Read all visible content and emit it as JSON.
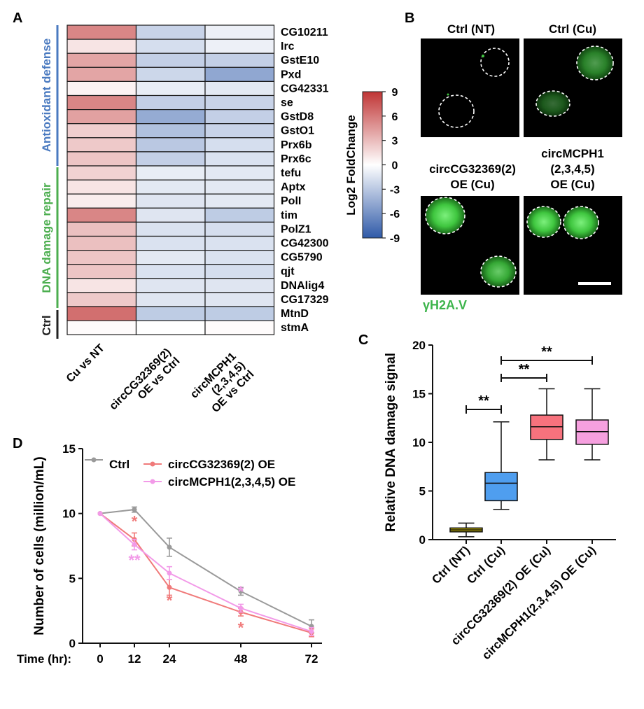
{
  "colors": {
    "red": "#c03535",
    "blue": "#3a64ae",
    "green_text": "#3cb44b",
    "gene_group_bar_antioxidant": "#4a7ac0",
    "gene_group_bar_dna": "#4cae4f",
    "ctrl_line": "#9a9a9a",
    "oe1_line": "#f07a7a",
    "oe2_line": "#f29ae8",
    "box_nt": "#b5a600",
    "box_cu": "#4f9eef",
    "box_oe1": "#f7727d",
    "box_oe2": "#f6a0df"
  },
  "panels": {
    "a": "A",
    "b": "B",
    "c": "C",
    "d": "D"
  },
  "heatmap": {
    "groups": [
      "Antioxidant defense",
      "DNA damage repair",
      "Ctrl"
    ],
    "genes": [
      "CG10211",
      "Irc",
      "GstE10",
      "Pxd",
      "CG42331",
      "se",
      "GstD8",
      "GstO1",
      "Prx6b",
      "Prx6c",
      "tefu",
      "Aptx",
      "PolI",
      "tim",
      "PolZ1",
      "CG42300",
      "CG5790",
      "qjt",
      "DNAlig4",
      "CG17329",
      "MtnD",
      "stmA"
    ],
    "columns": [
      "Cu vs NT",
      "circCG32369(2)\nOE vs Ctrl",
      "circMCPH1\n(2,3,4,5)\nOE vs Ctrl"
    ],
    "values": [
      [
        5.4,
        -2.4,
        -0.8
      ],
      [
        1.2,
        -1.8,
        -0.8
      ],
      [
        4.0,
        -2.6,
        -2.6
      ],
      [
        4.0,
        -2.2,
        -4.8
      ],
      [
        0.6,
        -1.0,
        -1.2
      ],
      [
        5.4,
        -2.6,
        -2.4
      ],
      [
        4.2,
        -4.6,
        -2.6
      ],
      [
        2.2,
        -3.4,
        -2.4
      ],
      [
        2.4,
        -3.0,
        -1.8
      ],
      [
        2.6,
        -2.6,
        -1.6
      ],
      [
        2.0,
        -1.0,
        -1.2
      ],
      [
        1.2,
        -1.2,
        -1.2
      ],
      [
        0.8,
        -1.4,
        -1.2
      ],
      [
        5.4,
        -1.4,
        -2.8
      ],
      [
        2.8,
        -1.6,
        -1.8
      ],
      [
        2.8,
        -1.6,
        -1.6
      ],
      [
        2.6,
        -1.2,
        -1.6
      ],
      [
        2.6,
        -1.6,
        -1.8
      ],
      [
        1.2,
        -1.4,
        -1.4
      ],
      [
        2.4,
        -1.4,
        -1.4
      ],
      [
        6.4,
        -2.8,
        -2.8
      ],
      [
        0.2,
        0.0,
        0.2
      ]
    ],
    "colorbar": {
      "label": "Log2 FoldChange",
      "ticks": [
        "9",
        "6",
        "3",
        "0",
        "-3",
        "-6",
        "-9"
      ],
      "min": -9,
      "max": 9
    }
  },
  "microscopy": {
    "titles": [
      "Ctrl (NT)",
      "Ctrl (Cu)",
      "circCG32369(2)\nOE (Cu)",
      "circMCPH1\n(2,3,4,5)\nOE (Cu)"
    ],
    "stain_label": "γH2A.V"
  },
  "chart_data": [
    {
      "type": "box",
      "ylabel": "Relative DNA damage signal",
      "ylim": [
        0,
        20
      ],
      "yticks": [
        "0",
        "5",
        "10",
        "15",
        "20"
      ],
      "categories": [
        "Ctrl (NT)",
        "Ctrl (Cu)",
        "circCG32369(2) OE (Cu)",
        "circMCPH1(2,3,4,5) OE (Cu)"
      ],
      "boxes": [
        {
          "min": 0.3,
          "q1": 0.8,
          "median": 1.0,
          "q3": 1.2,
          "max": 1.7
        },
        {
          "min": 3.1,
          "q1": 4.0,
          "median": 5.8,
          "q3": 6.9,
          "max": 12.1
        },
        {
          "min": 8.2,
          "q1": 10.3,
          "median": 11.6,
          "q3": 12.8,
          "max": 15.5
        },
        {
          "min": 8.2,
          "q1": 9.8,
          "median": 11.1,
          "q3": 12.3,
          "max": 15.5
        }
      ],
      "significance": [
        {
          "from": 0,
          "to": 1,
          "label": "**"
        },
        {
          "from": 1,
          "to": 2,
          "label": "**"
        },
        {
          "from": 1,
          "to": 3,
          "label": "**"
        }
      ]
    },
    {
      "type": "line",
      "xlabel": "Time (hr):",
      "ylabel": "Number of cells (million/mL)",
      "x": [
        0,
        12,
        24,
        48,
        72
      ],
      "xticks": [
        "0",
        "12",
        "24",
        "48",
        "72"
      ],
      "yticks": [
        "0",
        "5",
        "10",
        "15"
      ],
      "ylim": [
        0,
        15
      ],
      "series": [
        {
          "name": "Ctrl",
          "values": [
            10.0,
            10.3,
            7.4,
            4.0,
            1.3
          ],
          "errors": [
            0,
            0.2,
            0.7,
            0.3,
            0.5
          ]
        },
        {
          "name": "circCG32369(2) OE",
          "values": [
            10.0,
            8.0,
            4.3,
            2.4,
            0.8
          ],
          "errors": [
            0,
            0.5,
            0.6,
            0.3,
            0.3
          ]
        },
        {
          "name": "circMCPH1(2,3,4,5) OE",
          "values": [
            10.0,
            7.6,
            5.4,
            2.7,
            0.9
          ],
          "errors": [
            0,
            0.4,
            0.5,
            0.3,
            0.3
          ]
        }
      ],
      "annotations": [
        {
          "series": 1,
          "x": 12,
          "label": "*"
        },
        {
          "series": 2,
          "x": 12,
          "label": "**"
        },
        {
          "series": 1,
          "x": 24,
          "label": "*"
        },
        {
          "series": 2,
          "x": 48,
          "label": "*"
        },
        {
          "series": 1,
          "x": 48,
          "label": "*"
        }
      ]
    }
  ]
}
